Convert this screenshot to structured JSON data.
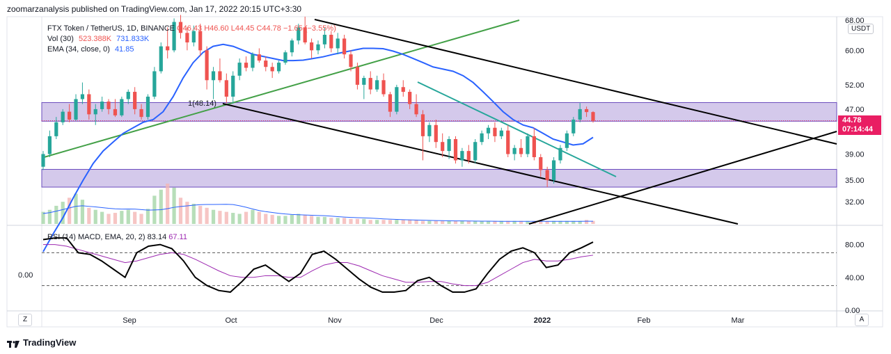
{
  "header": {
    "publisher_line": "zoomarzanalysis published on TradingView.com, Jan 17, 2022 20:15 UTC+3:30"
  },
  "legend": {
    "symbol": "FTX Token / TetherUS, 1D, BINANCE",
    "ohlc": "O46.43 H46.60 L44.45 C44.78 −1.65 (−3.55%)",
    "vol_label": "Vol (30)",
    "vol_value1": "523.388K",
    "vol_value2": "731.833K",
    "ema_label": "EMA (34, close, 0)",
    "ema_value": "41.85"
  },
  "rsi_legend": {
    "label": "RSI (14) MACD, EMA, 20, 2)",
    "value1": "83.14",
    "value2": "67.11"
  },
  "price_tag": {
    "price": "44.78",
    "countdown": "07:14:44"
  },
  "currency_button": "USDT",
  "corner_left": "Z",
  "corner_right": "A",
  "pane2_left_value": "0.00",
  "annotation": "1(48.14)",
  "footer": {
    "brand": "TradingView"
  },
  "colors": {
    "up": "#26a69a",
    "down": "#ef5350",
    "zone": "#cdbfe8",
    "zone_border": "#6a4bbd",
    "ema": "#2962ff",
    "rsi": "#000000",
    "signal": "#9c27b0",
    "green_line": "#43a047",
    "teal_line": "#26a69a",
    "price_tag": "#e91e63"
  },
  "chart_data": {
    "type": "candlestick",
    "x_ticks": [
      "Sep",
      "Oct",
      "Nov",
      "Dec",
      "2022",
      "Feb",
      "Mar"
    ],
    "price_axis": [
      "68.00",
      "60.00",
      "52.00",
      "47.00",
      "39.00",
      "35.00",
      "32.00"
    ],
    "price_axis_scale": "log",
    "rsi_axis": [
      "80.00",
      "40.00",
      "0.00"
    ],
    "rsi_levels": [
      70,
      30
    ],
    "support_zones": [
      {
        "from": 44.7,
        "to": 48.3
      },
      {
        "from": 34.0,
        "to": 36.6
      }
    ],
    "last_price": 44.78,
    "ema_34": [
      26.0,
      28.0,
      30.0,
      32.5,
      35.0,
      37.5,
      39.5,
      41.0,
      42.5,
      43.5,
      44.5,
      45.0,
      46.5,
      49.5,
      53.5,
      57.0,
      59.5,
      61.0,
      61.5,
      61.0,
      60.0,
      59.0,
      58.5,
      58.0,
      57.5,
      57.5,
      57.6,
      58.0,
      58.4,
      59.0,
      59.5,
      60.0,
      60.5,
      60.5,
      60.4,
      59.8,
      59.0,
      58.0,
      57.0,
      56.0,
      55.5,
      55.0,
      54.0,
      52.5,
      50.5,
      48.5,
      46.5,
      45.0,
      44.0,
      43.5,
      42.5,
      41.5,
      41.0,
      40.5,
      40.7,
      41.8
    ],
    "rsi": [
      86,
      88,
      88,
      70,
      68,
      60,
      50,
      40,
      70,
      78,
      80,
      75,
      60,
      40,
      30,
      24,
      22,
      35,
      50,
      55,
      45,
      35,
      45,
      68,
      72,
      62,
      50,
      38,
      28,
      22,
      22,
      24,
      36,
      40,
      30,
      22,
      22,
      26,
      45,
      62,
      72,
      76,
      70,
      52,
      55,
      70,
      76,
      83
    ],
    "rsi_signal": [
      80,
      80,
      78,
      74,
      70,
      66,
      62,
      58,
      60,
      64,
      68,
      70,
      68,
      62,
      55,
      48,
      42,
      40,
      40,
      42,
      42,
      40,
      40,
      48,
      55,
      58,
      58,
      54,
      48,
      42,
      38,
      34,
      34,
      35,
      35,
      32,
      30,
      30,
      34,
      42,
      50,
      58,
      62,
      60,
      60,
      62,
      65,
      67
    ],
    "candles": [
      [
        37.0,
        39.5,
        36.5,
        39.0
      ],
      [
        39.0,
        43.0,
        38.5,
        42.0
      ],
      [
        42.0,
        45.5,
        41.5,
        44.5
      ],
      [
        44.5,
        47.0,
        44.0,
        46.5
      ],
      [
        46.5,
        48.0,
        44.5,
        45.0
      ],
      [
        45.0,
        50.0,
        44.8,
        49.0
      ],
      [
        49.0,
        52.5,
        48.0,
        50.0
      ],
      [
        50.0,
        51.0,
        45.0,
        46.0
      ],
      [
        46.0,
        48.0,
        44.0,
        47.0
      ],
      [
        47.0,
        49.5,
        46.5,
        48.5
      ],
      [
        48.5,
        49.0,
        46.0,
        47.0
      ],
      [
        47.0,
        49.0,
        45.5,
        45.8
      ],
      [
        45.8,
        49.5,
        45.5,
        49.0
      ],
      [
        49.0,
        51.0,
        48.0,
        50.5
      ],
      [
        50.5,
        51.5,
        46.0,
        47.0
      ],
      [
        47.0,
        48.0,
        45.0,
        45.5
      ],
      [
        45.5,
        50.0,
        45.0,
        49.5
      ],
      [
        49.5,
        56.0,
        49.0,
        55.0
      ],
      [
        55.0,
        62.0,
        54.5,
        61.0
      ],
      [
        61.0,
        66.0,
        58.0,
        60.0
      ],
      [
        60.0,
        68.5,
        59.5,
        67.5
      ],
      [
        67.5,
        69.5,
        63.0,
        64.5
      ],
      [
        64.5,
        66.0,
        60.0,
        62.0
      ],
      [
        62.0,
        66.5,
        61.0,
        65.0
      ],
      [
        65.0,
        67.0,
        58.5,
        60.0
      ],
      [
        60.0,
        61.0,
        51.0,
        53.0
      ],
      [
        53.0,
        56.0,
        49.0,
        55.0
      ],
      [
        55.0,
        58.0,
        52.5,
        53.0
      ],
      [
        53.0,
        54.5,
        48.2,
        49.5
      ],
      [
        49.5,
        55.0,
        48.1,
        54.0
      ],
      [
        54.0,
        58.0,
        53.0,
        57.0
      ],
      [
        57.0,
        58.5,
        55.0,
        55.8
      ],
      [
        55.8,
        59.5,
        55.0,
        59.0
      ],
      [
        59.0,
        60.5,
        57.0,
        57.5
      ],
      [
        57.5,
        58.5,
        55.0,
        56.0
      ],
      [
        56.0,
        57.0,
        53.5,
        55.0
      ],
      [
        55.0,
        57.5,
        54.5,
        57.0
      ],
      [
        57.0,
        60.0,
        56.5,
        59.5
      ],
      [
        59.5,
        63.0,
        58.5,
        62.5
      ],
      [
        62.5,
        67.0,
        61.5,
        66.0
      ],
      [
        66.0,
        69.0,
        61.5,
        62.0
      ],
      [
        62.0,
        63.0,
        58.0,
        60.0
      ],
      [
        60.0,
        62.5,
        59.0,
        61.5
      ],
      [
        61.5,
        66.0,
        60.5,
        64.0
      ],
      [
        64.0,
        65.0,
        59.5,
        60.5
      ],
      [
        60.5,
        64.5,
        59.0,
        63.0
      ],
      [
        63.0,
        64.0,
        58.0,
        59.0
      ],
      [
        59.0,
        60.0,
        55.0,
        56.0
      ],
      [
        56.0,
        57.0,
        51.0,
        52.0
      ],
      [
        52.0,
        54.0,
        49.0,
        53.5
      ],
      [
        53.5,
        55.0,
        50.0,
        51.0
      ],
      [
        51.0,
        54.0,
        50.5,
        53.0
      ],
      [
        53.0,
        54.5,
        49.5,
        50.0
      ],
      [
        50.0,
        50.5,
        45.5,
        46.5
      ],
      [
        46.5,
        52.0,
        46.0,
        51.5
      ],
      [
        51.5,
        53.0,
        49.5,
        50.5
      ],
      [
        50.5,
        51.0,
        47.0,
        48.0
      ],
      [
        48.0,
        50.0,
        45.5,
        46.0
      ],
      [
        46.0,
        46.8,
        38.0,
        42.0
      ],
      [
        42.0,
        44.5,
        41.0,
        44.0
      ],
      [
        44.0,
        45.0,
        40.0,
        41.0
      ],
      [
        41.0,
        42.5,
        38.5,
        39.5
      ],
      [
        39.5,
        42.0,
        38.2,
        41.5
      ],
      [
        41.5,
        42.0,
        37.5,
        38.0
      ],
      [
        38.0,
        40.0,
        37.0,
        39.5
      ],
      [
        39.5,
        40.5,
        37.5,
        38.0
      ],
      [
        38.0,
        41.5,
        37.5,
        41.0
      ],
      [
        41.0,
        43.0,
        40.5,
        42.5
      ],
      [
        42.5,
        44.0,
        41.5,
        43.5
      ],
      [
        43.5,
        44.5,
        41.0,
        42.0
      ],
      [
        42.0,
        43.5,
        41.5,
        43.0
      ],
      [
        43.0,
        44.0,
        38.5,
        39.0
      ],
      [
        39.0,
        40.5,
        38.0,
        40.0
      ],
      [
        40.0,
        41.5,
        38.5,
        39.0
      ],
      [
        39.0,
        42.5,
        38.5,
        42.0
      ],
      [
        42.0,
        43.5,
        38.0,
        38.5
      ],
      [
        38.5,
        39.0,
        35.5,
        36.5
      ],
      [
        36.5,
        37.0,
        34.0,
        35.0
      ],
      [
        35.0,
        38.5,
        34.5,
        38.0
      ],
      [
        38.0,
        40.5,
        37.5,
        40.0
      ],
      [
        40.0,
        43.0,
        39.5,
        42.5
      ],
      [
        42.5,
        45.5,
        42.0,
        45.0
      ],
      [
        45.0,
        48.2,
        44.5,
        47.0
      ],
      [
        47.0,
        47.5,
        45.5,
        46.43
      ],
      [
        46.43,
        46.6,
        44.45,
        44.78
      ]
    ],
    "volume": [
      12,
      14,
      18,
      22,
      26,
      30,
      24,
      16,
      14,
      12,
      10,
      11,
      13,
      14,
      12,
      10,
      15,
      28,
      34,
      40,
      36,
      26,
      22,
      20,
      18,
      16,
      14,
      13,
      12,
      11,
      10,
      12,
      14,
      12,
      10,
      9,
      8,
      8,
      9,
      10,
      9,
      8,
      7,
      7,
      6,
      6,
      6,
      5,
      5,
      5,
      4,
      4,
      4,
      4,
      4,
      4,
      4,
      4,
      3,
      3,
      3,
      3,
      3,
      3,
      3,
      3,
      3,
      3,
      3,
      3,
      3,
      3,
      3,
      3,
      3,
      3,
      3,
      3,
      3,
      3,
      3,
      3,
      3,
      4,
      3
    ]
  }
}
